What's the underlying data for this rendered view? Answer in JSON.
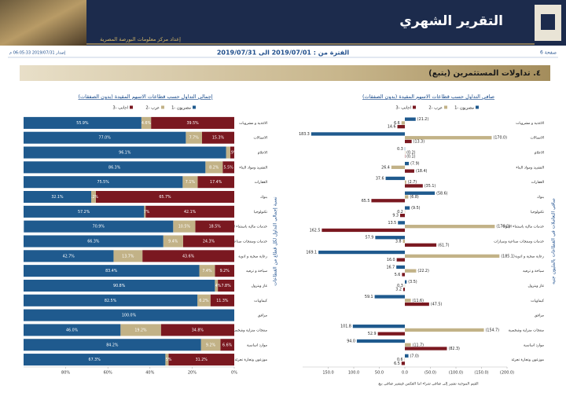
{
  "header": {
    "title": "التقرير الشهري",
    "subtitle": "إعداد مركز معلومات البورصة المصرية",
    "page": "صفحة 6",
    "period": "الفترة من : 2019/07/01 الى 2019/07/31",
    "issued": "إصدار 2019/07/31 06:05:33 م",
    "section": "٤. تداولات المستثمرين (يتبع)"
  },
  "chart_data": [
    {
      "type": "bar",
      "stacked": true,
      "title": "إجمالي التداول حسب قطاعات الاسهم المقيدة (بدون الصفقات)",
      "y_label": "نسبة إجمالي التداول لكل قطاع من القطاعات",
      "categories": [
        "الاغذية و مشروبات",
        "الاتصالات",
        "الاعلام",
        "التشييد ومواد البناء",
        "العقارات",
        "بنوك",
        "تكنولوجيا",
        "خدمات مالية باستثناء البنوك",
        "خدمات ومنتجات صناعية وسيارات",
        "رعاية صحية و ادوية",
        "سياحة و ترفيه",
        "غاز وبترول",
        "كيماويات",
        "مرافق",
        "منتجات منزلية وشخصية",
        "موارد اساسية",
        "موزعون وتجارة تجزئة"
      ],
      "series": [
        {
          "name": "مصريون -1",
          "color": "#1f5a8e",
          "values": [
            55.9,
            77.0,
            96.1,
            86.3,
            75.5,
            32.1,
            57.2,
            70.9,
            66.3,
            42.7,
            83.4,
            90.8,
            82.5,
            100.0,
            46.0,
            84.2,
            67.3
          ],
          "value_labels": [
            "55.9%",
            "77.0%",
            "96.1%",
            "86.3%",
            "75.5%",
            "32.1%",
            "57.2%",
            "70.9%",
            "66.3%",
            "42.7%",
            "83.4%",
            "90.8%",
            "82.5%",
            "100.0%",
            "46.0%",
            "84.2%",
            "67.3%"
          ]
        },
        {
          "name": "عرب -2",
          "color": "#c2b287",
          "values": [
            4.6,
            7.7,
            2.0,
            8.2,
            7.1,
            2.2,
            0.7,
            10.5,
            9.4,
            13.7,
            7.4,
            1.4,
            6.2,
            0,
            19.2,
            9.2,
            1.5
          ],
          "value_labels": [
            "4.6%",
            "7.7%",
            null,
            "8.2%",
            "7.1%",
            "2.2%",
            "0.7%",
            "10.5%",
            "9.4%",
            "13.7%",
            "7.4%",
            "1.4%",
            "6.2%",
            null,
            "19.2%",
            "9.2%",
            "1.5%"
          ]
        },
        {
          "name": "اجانب -3",
          "color": "#7a1820",
          "values": [
            39.5,
            15.3,
            1.9,
            5.5,
            17.4,
            65.7,
            42.1,
            18.5,
            24.3,
            43.6,
            9.2,
            7.8,
            11.3,
            0,
            34.8,
            6.6,
            31.2
          ],
          "value_labels": [
            "39.5%",
            "15.3%",
            "1.9%",
            "5.5%",
            "17.4%",
            "65.7%",
            "42.1%",
            "18.5%",
            "24.3%",
            "43.6%",
            "9.2%",
            "7.8%",
            "11.3%",
            null,
            "34.8%",
            "6.6%",
            "31.2%"
          ]
        }
      ],
      "xlim": [
        100,
        0
      ],
      "xticks": [
        {
          "value": 80,
          "label": "80%"
        },
        {
          "value": 60,
          "label": "60%"
        },
        {
          "value": 40,
          "label": "40%"
        },
        {
          "value": 20,
          "label": "20%"
        },
        {
          "value": 0,
          "label": "0%"
        }
      ]
    },
    {
      "type": "bar",
      "stacked": false,
      "title": "صافي التداول حسب قطاعات الاسهم المقيدة (بدون الصفقات)",
      "y_label": "صافي التعاملات في القطاعات بالمليون جنيه",
      "categories": [
        "الاغذية و مشروبات",
        "الاتصالات",
        "الاعلام",
        "التشييد ومواد البناء",
        "العقارات",
        "بنوك",
        "تكنولوجيا",
        "خدمات مالية باستثناء البنوك",
        "خدمات ومنتجات صناعية وسيارات",
        "رعاية صحية و ادوية",
        "سياحة و ترفيه",
        "غاز وبترول",
        "كيماويات",
        "مرافق",
        "منتجات منزلية وشخصية",
        "موارد اساسية",
        "موزعون وتجارة تجزئة"
      ],
      "series": [
        {
          "name": "مصريون -1",
          "color": "#1f5a8e",
          "values": [
            -21.2,
            183.3,
            0.3,
            -7.9,
            37.6,
            -58.6,
            -9.5,
            13.5,
            57.9,
            169.1,
            16.7,
            -3.5,
            59.1,
            null,
            101.8,
            94.0,
            -7.0
          ],
          "value_labels": [
            "(21.2)",
            "183.3",
            "0.3",
            "(7.9)",
            "37.6",
            "(58.6)",
            "(9.5)",
            "13.5",
            "57.9",
            "169.1",
            "16.7",
            "(3.5)",
            "59.1",
            null,
            "101.8",
            "94.0",
            "(7.0)"
          ]
        },
        {
          "name": "عرب -2",
          "color": "#c2b287",
          "values": [
            6.6,
            -170.0,
            -0.2,
            26.4,
            -2.7,
            -6.8,
            0.2,
            -176.0,
            3.8,
            -185.1,
            -22.2,
            0.3,
            -11.6,
            null,
            -154.7,
            -11.7,
            0.6
          ],
          "value_labels": [
            "6.6",
            "(170.0)",
            "(0.2)",
            "26.4",
            "(2.7)",
            "(6.8)",
            "0.2",
            "(176.0)",
            "3.8",
            "(185.1)",
            "(22.2)",
            "0.3",
            "(11.6)",
            null,
            "(154.7)",
            "(11.7)",
            "0.6"
          ]
        },
        {
          "name": "اجانب -3",
          "color": "#7a1820",
          "values": [
            14.6,
            -13.3,
            -0.1,
            -18.4,
            -35.1,
            65.5,
            9.3,
            162.5,
            -61.7,
            16.0,
            5.6,
            3.2,
            -47.5,
            null,
            52.9,
            -82.3,
            6.5
          ],
          "value_labels": [
            "14.6",
            "(13.3)",
            "(0.1)",
            "(18.4)",
            "(35.1)",
            "65.5",
            "9.3",
            "162.5",
            "(61.7)",
            "16.0",
            "5.6",
            "3.2",
            "(47.5)",
            null,
            "52.9",
            "(82.3)",
            "6.5"
          ]
        }
      ],
      "xlim": [
        200,
        -200
      ],
      "xticks": [
        {
          "value": 150,
          "label": "150.0"
        },
        {
          "value": 100,
          "label": "100.0"
        },
        {
          "value": 50,
          "label": "50.0"
        },
        {
          "value": 0,
          "label": "0.0"
        },
        {
          "value": -50,
          "label": "(50.0)"
        },
        {
          "value": -100,
          "label": "(100.0)"
        },
        {
          "value": -150,
          "label": "(150.0)"
        },
        {
          "value": -200,
          "label": "(200.0)"
        }
      ]
    }
  ],
  "footnote": "القيم الموجبة تشير إلى صافي شراء اما العكس فيشير صافي بيع"
}
